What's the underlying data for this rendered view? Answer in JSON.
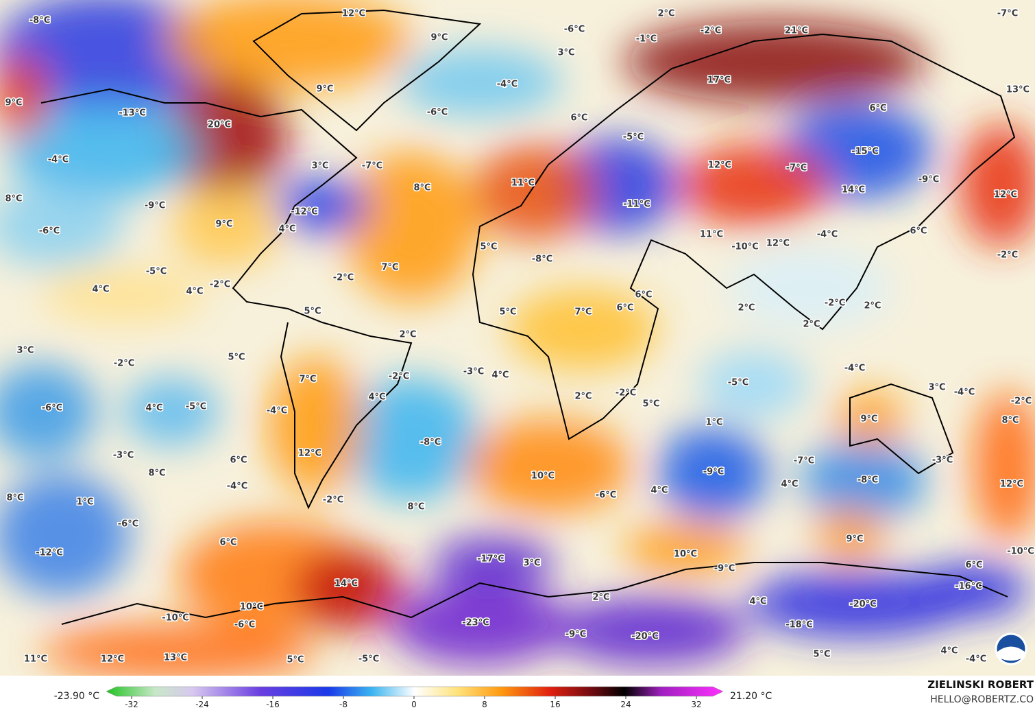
{
  "map": {
    "labels": [
      "-8°C",
      "12°C",
      "9°C",
      "2°C",
      "-6°C",
      "-2°C",
      "-1°C",
      "21°C",
      "-7°C",
      "3°C",
      "-4°C",
      "17°C",
      "13°C",
      "9°C",
      "-13°C",
      "20°C",
      "9°C",
      "-6°C",
      "6°C",
      "6°C",
      "-5°C",
      "-15°C",
      "-4°C",
      "3°C",
      "-7°C",
      "12°C",
      "-7°C",
      "8°C",
      "-9°C",
      "8°C",
      "11°C",
      "-11°C",
      "14°C",
      "-9°C",
      "12°C",
      "9°C",
      "-12°C",
      "4°C",
      "-6°C",
      "11°C",
      "-10°C",
      "12°C",
      "-4°C",
      "6°C",
      "5°C",
      "-8°C",
      "7°C",
      "-5°C",
      "-2°C",
      "-2°C",
      "4°C",
      "4°C",
      "-2°C",
      "6°C",
      "6°C",
      "2°C",
      "-2°C",
      "2°C",
      "5°C",
      "5°C",
      "7°C",
      "2°C",
      "2°C",
      "3°C",
      "-2°C",
      "5°C",
      "7°C",
      "-2°C",
      "-3°C",
      "4°C",
      "-4°C",
      "-5°C",
      "2°C",
      "-2°C",
      "4°C",
      "5°C",
      "3°C",
      "-4°C",
      "-2°C",
      "-6°C",
      "4°C",
      "-5°C",
      "-4°C",
      "9°C",
      "8°C",
      "1°C",
      "-8°C",
      "-3°C",
      "6°C",
      "12°C",
      "-7°C",
      "-3°C",
      "8°C",
      "10°C",
      "-9°C",
      "-8°C",
      "-4°C",
      "4°C",
      "12°C",
      "8°C",
      "1°C",
      "-2°C",
      "8°C",
      "-6°C",
      "4°C",
      "-6°C",
      "9°C",
      "6°C",
      "-12°C",
      "10°C",
      "-17°C",
      "3°C",
      "-10°C",
      "6°C",
      "14°C",
      "-9°C",
      "-16°C",
      "2°C",
      "4°C",
      "10°C",
      "-20°C",
      "-10°C",
      "-6°C",
      "-23°C",
      "-18°C",
      "-9°C",
      "-20°C",
      "4°C",
      "11°C",
      "12°C",
      "13°C",
      "5°C",
      "-5°C",
      "5°C",
      "-4°C"
    ]
  },
  "colorbar": {
    "min_label": "-23.90 °C",
    "max_label": "21.20 °C",
    "ticks": [
      -32,
      -24,
      -16,
      -8,
      0,
      8,
      16,
      24,
      32
    ]
  },
  "credit": {
    "author": "ZIELINSKI ROBERT",
    "contact": "HELLO@ROBERTZ.CO"
  }
}
